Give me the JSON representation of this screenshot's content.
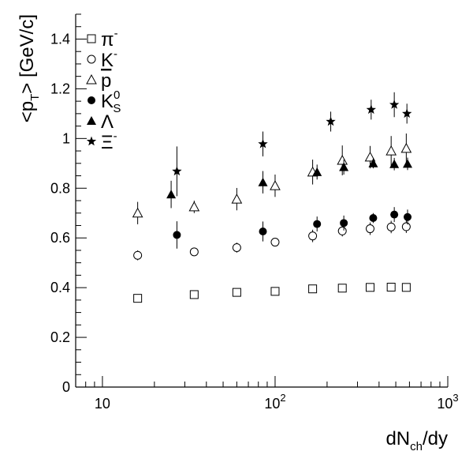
{
  "chart_data": {
    "type": "scatter",
    "title": "",
    "xlabel": "dN",
    "xlabel_sub": "ch",
    "xlabel_tail": "/dy",
    "ylabel": "<p",
    "ylabel_sub": "T",
    "ylabel_tail": "> [GeV/c]",
    "xscale": "log",
    "xlim": [
      7,
      1000
    ],
    "ylim": [
      0,
      1.5
    ],
    "x_major_ticks": [
      {
        "value": 10,
        "base": "10",
        "exp": ""
      },
      {
        "value": 100,
        "base": "10",
        "exp": "2"
      },
      {
        "value": 1000,
        "base": "10",
        "exp": "3"
      }
    ],
    "y_major_ticks": [
      {
        "value": 0,
        "label": "0"
      },
      {
        "value": 0.2,
        "label": "0.2"
      },
      {
        "value": 0.4,
        "label": "0.4"
      },
      {
        "value": 0.6,
        "label": "0.6"
      },
      {
        "value": 0.8,
        "label": "0.8"
      },
      {
        "value": 1.0,
        "label": "1"
      },
      {
        "value": 1.2,
        "label": "1.2"
      },
      {
        "value": 1.4,
        "label": "1.4"
      }
    ],
    "grid": false,
    "legend_position": "top-left",
    "series": [
      {
        "name": "π",
        "sup": "-",
        "sub": "",
        "bar": false,
        "marker": "open-square",
        "x": [
          16,
          34,
          60,
          100,
          165,
          245,
          355,
          470,
          575
        ],
        "y": [
          0.357,
          0.372,
          0.381,
          0.385,
          0.395,
          0.398,
          0.401,
          0.402,
          0.401
        ],
        "err": [
          0.006,
          0.006,
          0.006,
          0.006,
          0.006,
          0.006,
          0.006,
          0.006,
          0.006
        ]
      },
      {
        "name": "K",
        "sup": "-",
        "sub": "",
        "bar": false,
        "marker": "open-circle",
        "x": [
          16,
          34,
          60,
          100,
          165,
          245,
          355,
          470,
          575
        ],
        "y": [
          0.53,
          0.544,
          0.561,
          0.583,
          0.608,
          0.628,
          0.637,
          0.644,
          0.645
        ],
        "err": [
          0.02,
          0.015,
          0.02,
          0.015,
          0.025,
          0.022,
          0.025,
          0.025,
          0.025
        ]
      },
      {
        "name": "p",
        "sup": "",
        "sub": "",
        "bar": true,
        "marker": "open-triangle",
        "x": [
          16,
          34,
          60,
          100,
          165,
          245,
          355,
          470,
          575
        ],
        "y": [
          0.7,
          0.725,
          0.756,
          0.81,
          0.865,
          0.912,
          0.925,
          0.95,
          0.96
        ],
        "err": [
          0.045,
          0.025,
          0.045,
          0.045,
          0.05,
          0.06,
          0.045,
          0.06,
          0.06
        ]
      },
      {
        "name": "K",
        "sup": "0",
        "sub": "S",
        "bar": false,
        "marker": "filled-circle",
        "x": [
          27,
          85,
          175,
          250,
          370,
          490,
          585
        ],
        "y": [
          0.612,
          0.626,
          0.656,
          0.66,
          0.68,
          0.694,
          0.684
        ],
        "err": [
          0.055,
          0.04,
          0.03,
          0.03,
          0.02,
          0.03,
          0.03
        ]
      },
      {
        "name": "Λ",
        "sup": "",
        "sub": "",
        "bar": false,
        "marker": "filled-triangle",
        "x": [
          25,
          85,
          175,
          250,
          370,
          490,
          585
        ],
        "y": [
          0.775,
          0.824,
          0.865,
          0.885,
          0.9,
          0.897,
          0.898
        ],
        "err": [
          0.055,
          0.045,
          0.03,
          0.03,
          0.02,
          0.025,
          0.025
        ]
      },
      {
        "name": "Ξ",
        "sup": "-",
        "sub": "",
        "bar": false,
        "marker": "filled-star",
        "x": [
          27,
          85,
          210,
          360,
          490,
          580
        ],
        "y": [
          0.868,
          0.978,
          1.068,
          1.116,
          1.136,
          1.1
        ],
        "err": [
          0.1,
          0.05,
          0.04,
          0.04,
          0.05,
          0.04
        ]
      }
    ]
  }
}
